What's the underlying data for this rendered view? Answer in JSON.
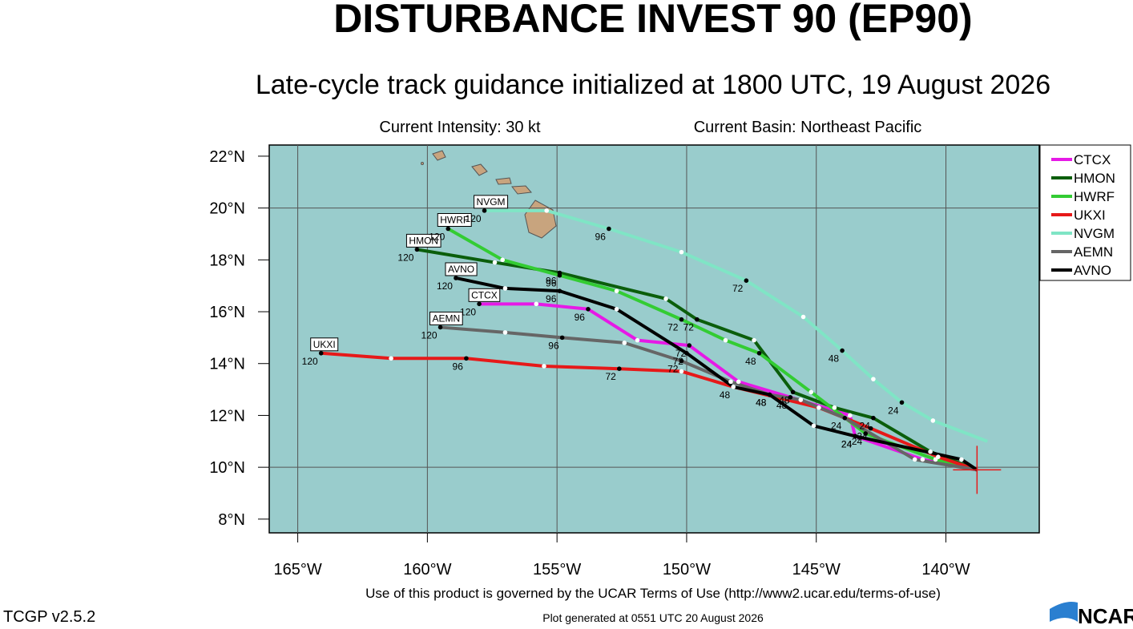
{
  "chart_data": {
    "type": "track",
    "title": "DISTURBANCE INVEST 90 (EP90)",
    "subtitle": "Late-cycle track guidance initialized at 1800 UTC, 19 August 2026",
    "intensity": "Current Intensity: 30 kt",
    "basin": "Current Basin: Northeast Pacific",
    "terms": "Use of this product is governed by the UCAR Terms of Use (http://www2.ucar.edu/terms-of-use)",
    "version": "TCGP v2.5.2",
    "generated": "Plot generated at 0551 UTC   20 August 2026",
    "logo": "NCAR",
    "xlim": [
      -166.1,
      -136.4
    ],
    "ylim": [
      7.47,
      22.43
    ],
    "xticks": [
      {
        "value": -165,
        "label": "165°W"
      },
      {
        "value": -160,
        "label": "160°W"
      },
      {
        "value": -155,
        "label": "155°W"
      },
      {
        "value": -150,
        "label": "150°W"
      },
      {
        "value": -145,
        "label": "145°W"
      },
      {
        "value": -140,
        "label": "140°W"
      }
    ],
    "yticks": [
      {
        "value": 8,
        "label": "8°N"
      },
      {
        "value": 10,
        "label": "10°N"
      },
      {
        "value": 12,
        "label": "12°N"
      },
      {
        "value": 14,
        "label": "14°N"
      },
      {
        "value": 16,
        "label": "16°N"
      },
      {
        "value": 18,
        "label": "18°N"
      },
      {
        "value": 20,
        "label": "20°N"
      },
      {
        "value": 22,
        "label": "22°N"
      }
    ],
    "current_position": {
      "lon": -138.8,
      "lat": 9.9
    },
    "series": [
      {
        "name": "CTCX",
        "color": "#e619e6",
        "hours": [
          0,
          12,
          24,
          36,
          48,
          60,
          72,
          84,
          96,
          108,
          120
        ],
        "x": [
          -138.8,
          -140.9,
          -143.5,
          -143.7,
          -146.0,
          -148.0,
          -149.9,
          -151.9,
          -153.8,
          -155.8,
          -158.0
        ],
        "y": [
          9.9,
          10.3,
          11.2,
          12.0,
          12.7,
          13.3,
          14.7,
          14.9,
          16.1,
          16.3,
          16.3
        ]
      },
      {
        "name": "HMON",
        "color": "#0b5e0b",
        "hours": [
          0,
          12,
          24,
          36,
          48,
          60,
          72,
          84,
          96,
          108,
          120
        ],
        "x": [
          -138.8,
          -140.6,
          -142.8,
          -144.3,
          -145.9,
          -147.4,
          -149.6,
          -150.8,
          -154.9,
          -157.4,
          -160.4
        ],
        "y": [
          9.9,
          10.6,
          11.9,
          12.3,
          12.9,
          14.9,
          15.7,
          16.5,
          17.5,
          17.9,
          18.4
        ]
      },
      {
        "name": "HWRF",
        "color": "#33cc33",
        "hours": [
          0,
          12,
          24,
          36,
          48,
          60,
          72,
          84,
          96,
          108,
          120
        ],
        "x": [
          -138.8,
          -140.4,
          -143.1,
          -145.2,
          -147.2,
          -148.5,
          -150.2,
          -152.7,
          -154.9,
          -157.1,
          -159.2
        ],
        "y": [
          9.9,
          10.3,
          11.3,
          12.9,
          14.4,
          14.9,
          15.7,
          16.8,
          17.4,
          18.0,
          19.2
        ]
      },
      {
        "name": "UKXI",
        "color": "#e61919",
        "hours": [
          0,
          12,
          24,
          36,
          48,
          60,
          72,
          84,
          96,
          108,
          120
        ],
        "x": [
          -138.8,
          -140.3,
          -142.9,
          -144.9,
          -148.2,
          -150.2,
          -152.6,
          -155.5,
          -158.5,
          -161.4,
          -164.1
        ],
        "y": [
          9.9,
          10.4,
          11.5,
          12.3,
          13.1,
          13.7,
          13.8,
          13.9,
          14.2,
          14.2,
          14.4
        ]
      },
      {
        "name": "NVGM",
        "color": "#7fe5c5",
        "hours": [
          0,
          12,
          24,
          36,
          48,
          60,
          72,
          84,
          96,
          108,
          120
        ],
        "x": [
          -138.4,
          -140.5,
          -141.7,
          -142.8,
          -144.0,
          -145.5,
          -147.7,
          -150.2,
          -153.0,
          -155.4,
          -157.8
        ],
        "y": [
          11.0,
          11.8,
          12.5,
          13.4,
          14.5,
          15.8,
          17.2,
          18.3,
          19.2,
          19.9,
          19.9
        ]
      },
      {
        "name": "AEMN",
        "color": "#666666",
        "hours": [
          0,
          12,
          24,
          36,
          48,
          60,
          72,
          84,
          96,
          108,
          120
        ],
        "x": [
          -138.8,
          -141.2,
          -143.9,
          -145.6,
          -146.8,
          -148.3,
          -150.2,
          -152.4,
          -154.8,
          -157.0,
          -159.5
        ],
        "y": [
          9.9,
          10.3,
          11.9,
          12.6,
          12.8,
          13.3,
          14.1,
          14.8,
          15.0,
          15.2,
          15.4
        ]
      },
      {
        "name": "AVNO",
        "color": "#000000",
        "hours": [
          0,
          12,
          24,
          36,
          48,
          60,
          72,
          84,
          96,
          108,
          120
        ],
        "x": [
          -138.8,
          -139.4,
          -143.5,
          -145.1,
          -146.8,
          -148.2,
          -150.0,
          -152.7,
          -154.9,
          -157.0,
          -158.9
        ],
        "y": [
          9.9,
          10.3,
          11.2,
          11.6,
          12.8,
          13.1,
          14.4,
          16.1,
          16.8,
          16.9,
          17.3
        ]
      }
    ]
  }
}
